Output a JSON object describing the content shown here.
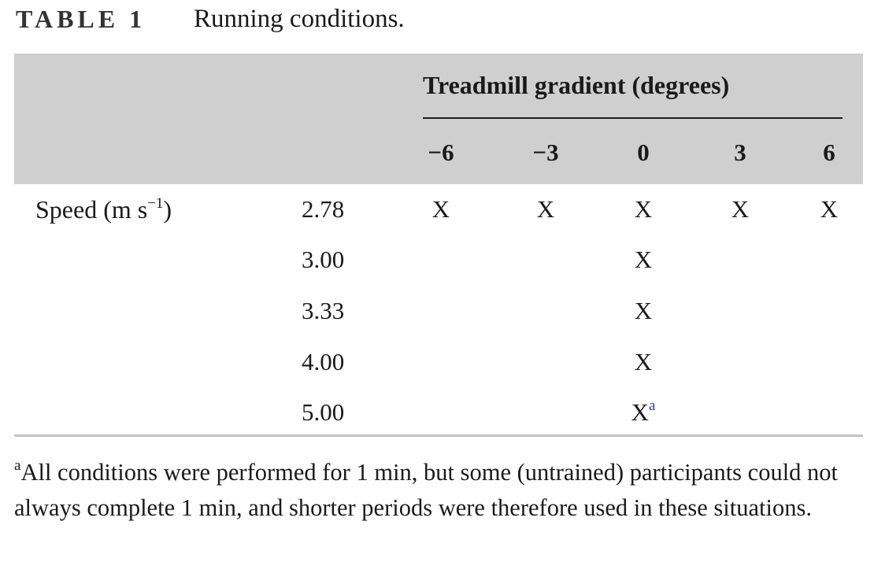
{
  "title": {
    "label": "TABLE 1",
    "caption": "Running conditions."
  },
  "table": {
    "group_header": "Treadmill gradient (degrees)",
    "columns": [
      "−6",
      "−3",
      "0",
      "3",
      "6"
    ],
    "row_header": {
      "text": "Speed (m s",
      "superscript": "−1",
      "suffix": ")"
    },
    "rows": [
      {
        "speed": "2.78",
        "cells": [
          "X",
          "X",
          "X",
          "X",
          "X"
        ]
      },
      {
        "speed": "3.00",
        "cells": [
          null,
          null,
          "X",
          null,
          null
        ]
      },
      {
        "speed": "3.33",
        "cells": [
          null,
          null,
          "X",
          null,
          null
        ]
      },
      {
        "speed": "4.00",
        "cells": [
          null,
          null,
          "X",
          null,
          null
        ]
      },
      {
        "speed": "5.00",
        "cells": [
          null,
          null,
          "X",
          null,
          null
        ],
        "note": "a"
      }
    ]
  },
  "footnote": {
    "mark": "a",
    "text": "All conditions were performed for 1 min, but some (untrained) participants could not always complete 1 min, and shorter periods were therefore used in these situations."
  }
}
